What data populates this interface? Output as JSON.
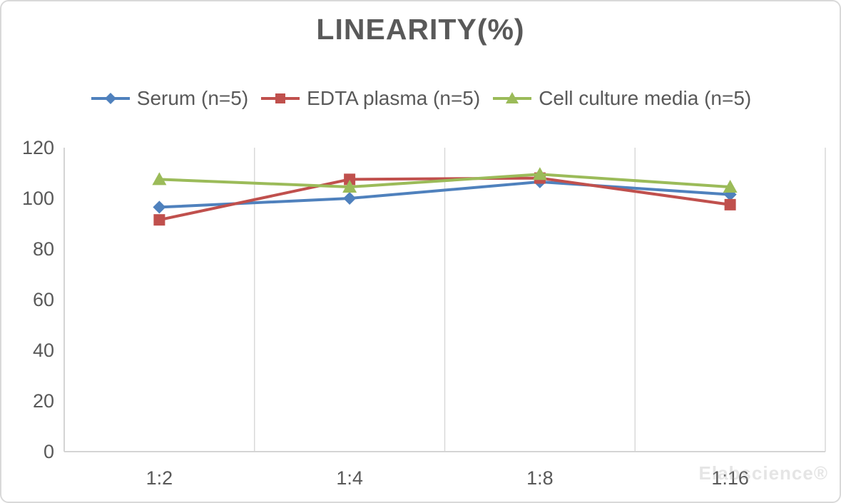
{
  "chart": {
    "title": "LINEARITY(%)"
  },
  "watermark": {
    "text": "Elabscience®"
  },
  "chart_data": {
    "type": "line",
    "title": "LINEARITY(%)",
    "categories": [
      "1:2",
      "1:4",
      "1:8",
      "1:16"
    ],
    "series": [
      {
        "name": "Serum (n=5)",
        "color": "#4F81BD",
        "marker": "diamond",
        "values": [
          96.5,
          100,
          106.5,
          101.5
        ]
      },
      {
        "name": "EDTA plasma (n=5)",
        "color": "#C0504D",
        "marker": "square",
        "values": [
          91.5,
          107.5,
          108,
          97.5
        ]
      },
      {
        "name": "Cell culture media (n=5)",
        "color": "#9BBB59",
        "marker": "triangle",
        "values": [
          107.5,
          104.5,
          109.5,
          104.5
        ]
      }
    ],
    "xlabel": "",
    "ylabel": "",
    "ylim": [
      0,
      120
    ],
    "yticks": [
      0,
      20,
      40,
      60,
      80,
      100,
      120
    ],
    "grid": "vertical-between-categories",
    "grid_color": "#D9D9D9",
    "axis_color": "#D4D4D4",
    "tick_color": "#595959",
    "legend_position": "top"
  }
}
